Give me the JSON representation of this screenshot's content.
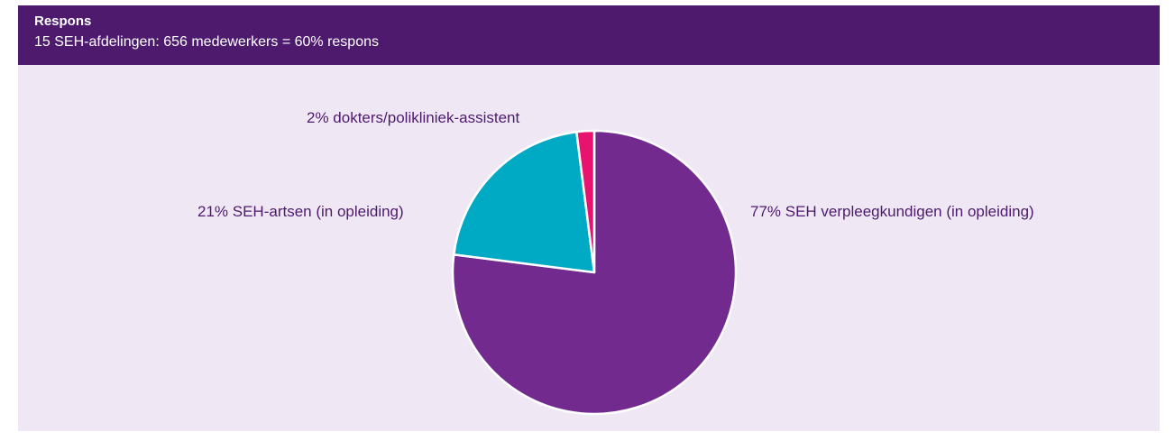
{
  "header": {
    "title": "Respons",
    "subtitle": "15 SEH-afdelingen: 656 medewerkers = 60% respons"
  },
  "chart_data": {
    "type": "pie",
    "start_angle": "12 o'clock",
    "direction": "clockwise",
    "slices": [
      {
        "label": "77% SEH verpleegkundigen (in opleiding)",
        "value": 77,
        "color": "#722a8e"
      },
      {
        "label": "21% SEH-artsen (in opleiding)",
        "value": 21,
        "color": "#00a9c4"
      },
      {
        "label": "2% dokters/polikliniek-assistent",
        "value": 2,
        "color": "#e8136e"
      }
    ],
    "legend": "none"
  },
  "colors": {
    "header_bg": "#4d1a6e",
    "panel_bg": "#efe8f4",
    "label_text": "#4d1a6e"
  }
}
